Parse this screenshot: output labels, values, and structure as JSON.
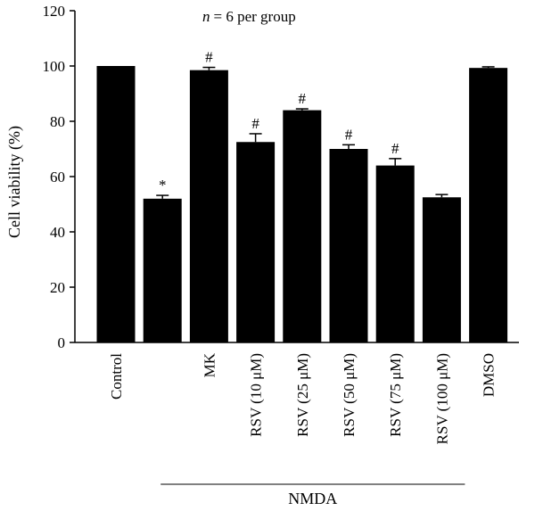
{
  "chart_data": {
    "type": "bar",
    "annotation": "= 6 per group",
    "annotation_var": "n",
    "ylabel": "Cell viability (%)",
    "ylim": [
      0,
      120
    ],
    "yticks": [
      "0",
      "20",
      "40",
      "60",
      "80",
      "100",
      "120"
    ],
    "categories": [
      {
        "label": "Control",
        "value": 100,
        "err": 0.3,
        "mark": ""
      },
      {
        "label": "",
        "value": 52,
        "err": 1.2,
        "mark": "*"
      },
      {
        "label": "MK",
        "value": 98.5,
        "err": 1.0,
        "mark": "#"
      },
      {
        "label": "RSV (10 μM)",
        "value": 72.5,
        "err": 3.0,
        "mark": "#"
      },
      {
        "label": "RSV (25 μM)",
        "value": 84,
        "err": 0.5,
        "mark": "#"
      },
      {
        "label": "RSV (50 μM)",
        "value": 70,
        "err": 1.5,
        "mark": "#"
      },
      {
        "label": "RSV (75 μM)",
        "value": 64,
        "err": 2.5,
        "mark": "#"
      },
      {
        "label": "RSV (100 μM)",
        "value": 52.5,
        "err": 1.0,
        "mark": ""
      },
      {
        "label": "DMSO",
        "value": 99.3,
        "err": 0.4,
        "mark": ""
      }
    ],
    "group_label": "NMDA",
    "bar_color": "#000000"
  }
}
